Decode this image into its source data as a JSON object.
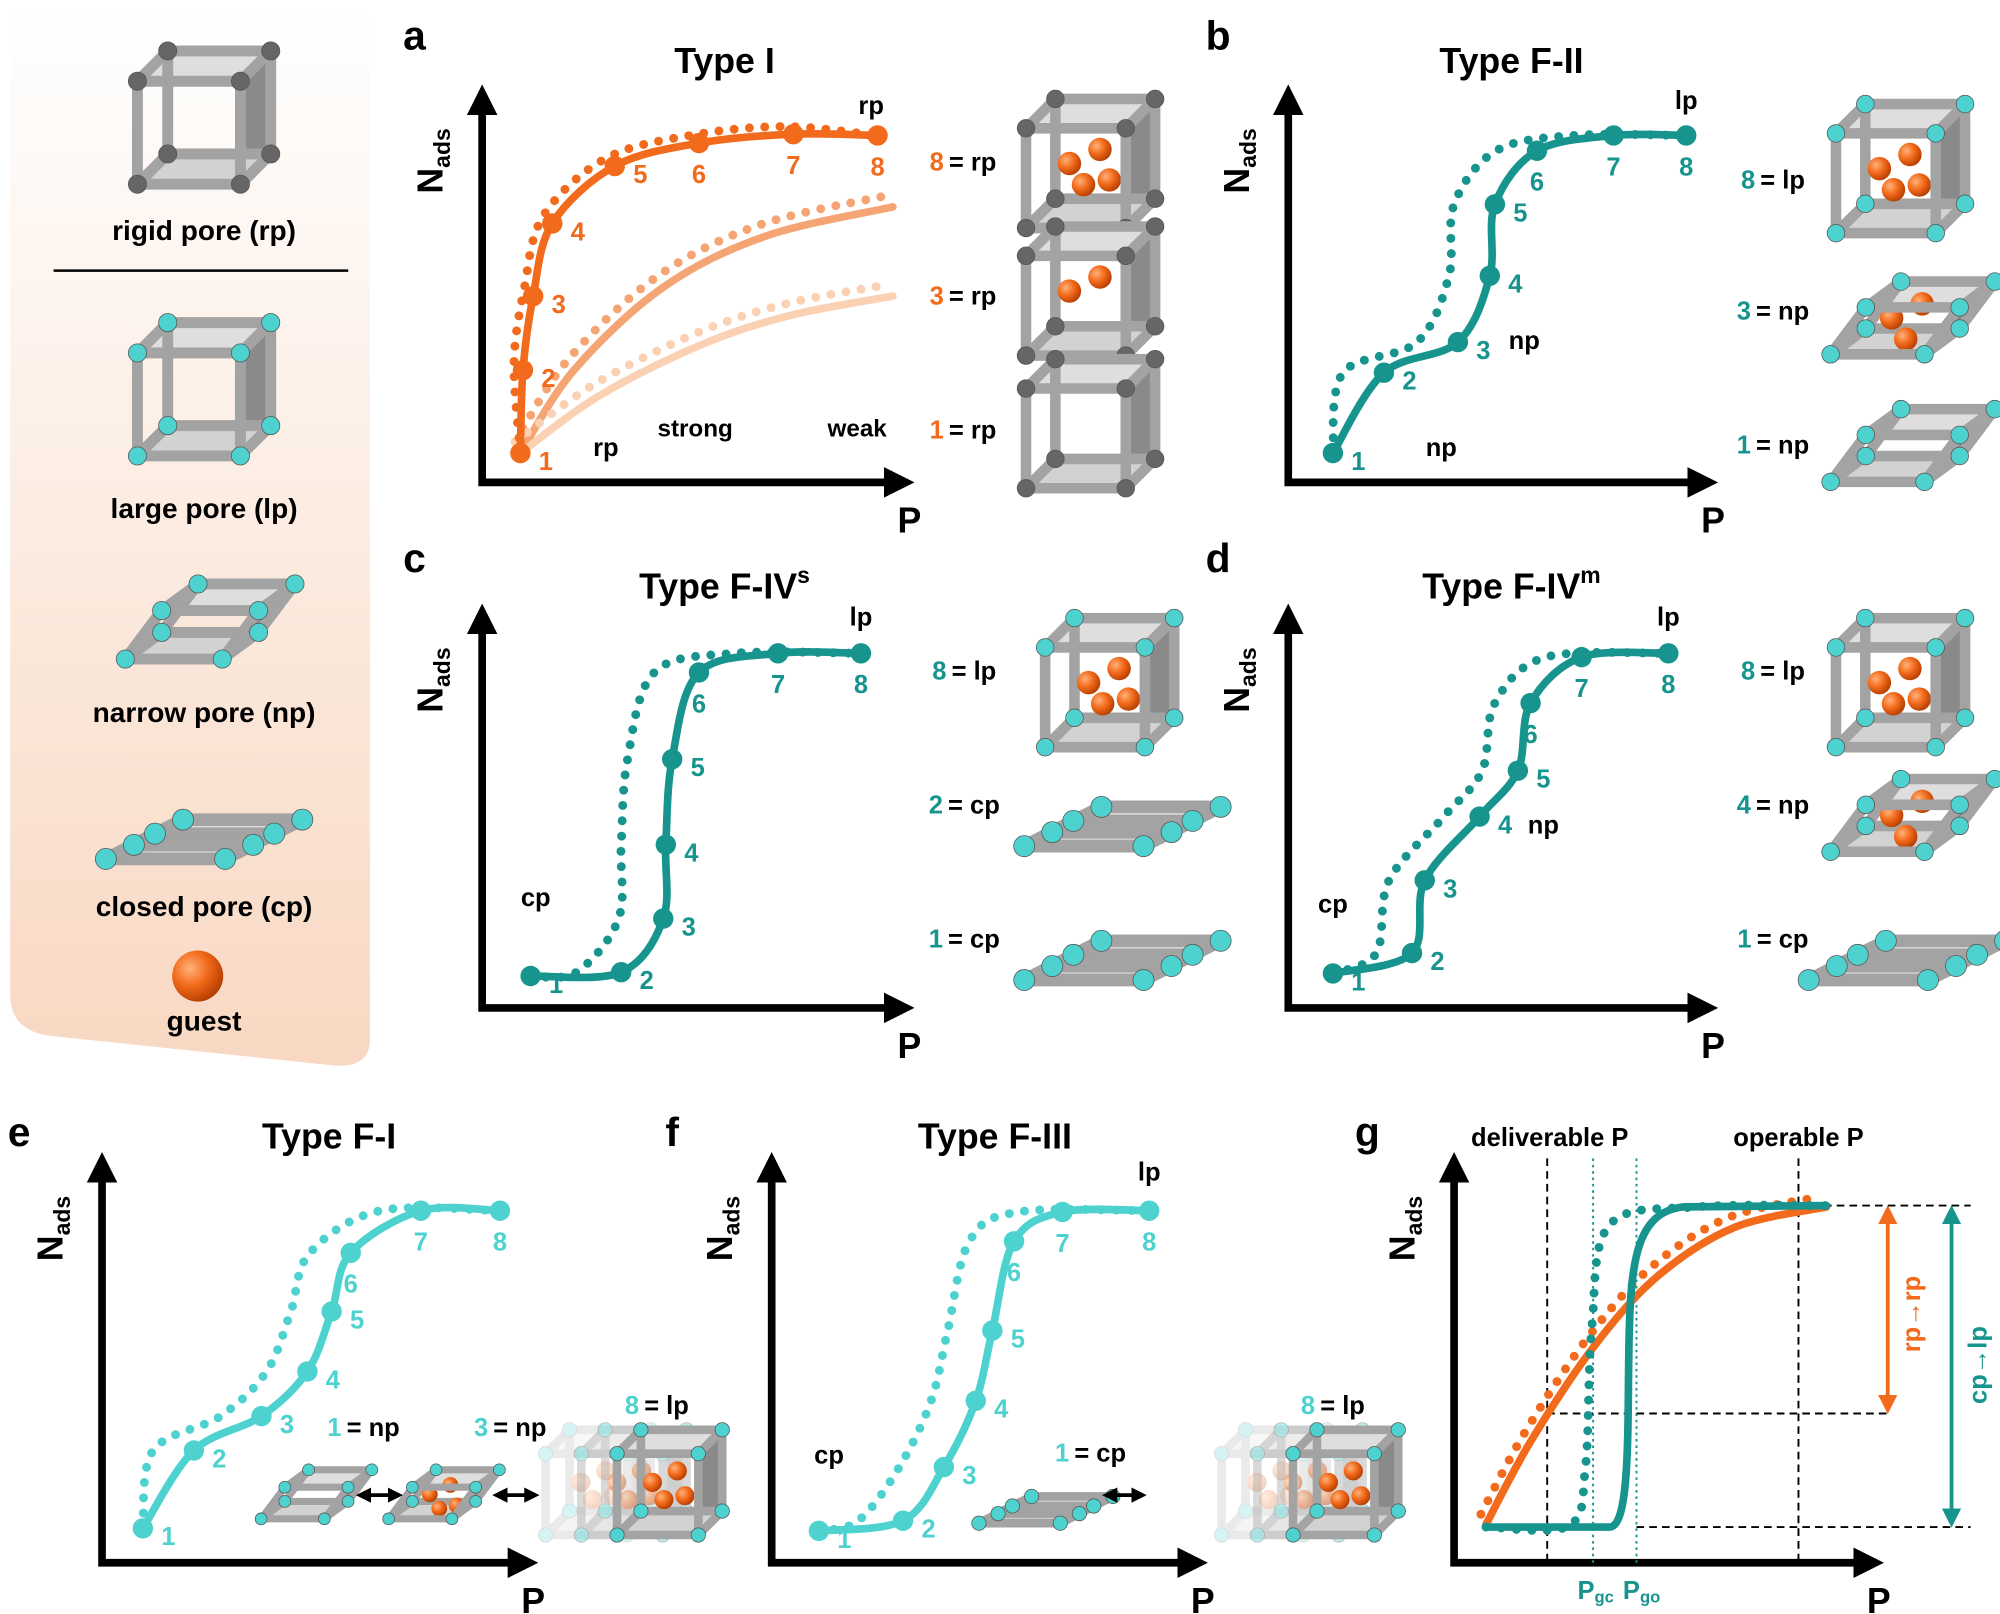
{
  "legend": {
    "items": [
      "rigid pore (rp)",
      "large pore (lp)",
      "narrow pore (np)",
      "closed pore (cp)",
      "guest"
    ]
  },
  "panels": [
    {
      "letter": "a",
      "title": "Type I",
      "y_label": "N",
      "y_label_sub": "ads",
      "x_label": "P",
      "points": [
        "1",
        "2",
        "3",
        "4",
        "5",
        "6",
        "7",
        "8"
      ],
      "annotations": [
        "rp",
        "rp"
      ],
      "key": [
        "strong",
        "weak"
      ],
      "states": [
        {
          "number": "8",
          "text": "= rp"
        },
        {
          "number": "3",
          "text": "= rp"
        },
        {
          "number": "1",
          "text": "= rp"
        }
      ]
    },
    {
      "letter": "b",
      "title": "Type F-II",
      "y_label": "N",
      "y_label_sub": "ads",
      "x_label": "P",
      "points": [
        "1",
        "2",
        "3",
        "4",
        "5",
        "6",
        "7",
        "8"
      ],
      "annotations": [
        "lp",
        "np",
        "np"
      ],
      "states": [
        {
          "number": "8",
          "text": "= lp"
        },
        {
          "number": "3",
          "text": "= np"
        },
        {
          "number": "1",
          "text": "= np"
        }
      ]
    },
    {
      "letter": "c",
      "title": "Type F-IV",
      "title_sup": "s",
      "y_label": "N",
      "y_label_sub": "ads",
      "x_label": "P",
      "points": [
        "1",
        "2",
        "3",
        "4",
        "5",
        "6",
        "7",
        "8"
      ],
      "annotations": [
        "cp",
        "lp"
      ],
      "states": [
        {
          "number": "8",
          "text": "= lp"
        },
        {
          "number": "2",
          "text": "= cp"
        },
        {
          "number": "1",
          "text": "= cp"
        }
      ]
    },
    {
      "letter": "d",
      "title": "Type F-IV",
      "title_sup": "m",
      "y_label": "N",
      "y_label_sub": "ads",
      "x_label": "P",
      "points": [
        "1",
        "2",
        "3",
        "4",
        "5",
        "6",
        "7",
        "8"
      ],
      "annotations": [
        "cp",
        "np",
        "lp"
      ],
      "states": [
        {
          "number": "8",
          "text": "= lp"
        },
        {
          "number": "4",
          "text": "= np"
        },
        {
          "number": "1",
          "text": "= cp"
        }
      ]
    },
    {
      "letter": "e",
      "title": "Type F-I",
      "y_label": "N",
      "y_label_sub": "ads",
      "x_label": "P",
      "points": [
        "1",
        "2",
        "3",
        "4",
        "5",
        "6",
        "7",
        "8"
      ],
      "annotations": [],
      "states": [
        {
          "number": "1",
          "text": "= np"
        },
        {
          "number": "3",
          "text": "= np"
        },
        {
          "number": "8",
          "text": "= lp"
        }
      ]
    },
    {
      "letter": "f",
      "title": "Type F-III",
      "y_label": "N",
      "y_label_sub": "ads",
      "x_label": "P",
      "points": [
        "1",
        "2",
        "3",
        "4",
        "5",
        "6",
        "7",
        "8"
      ],
      "annotations": [
        "cp",
        "lp"
      ],
      "states": [
        {
          "number": "1",
          "text": "= cp"
        },
        {
          "number": "8",
          "text": "= lp"
        }
      ]
    },
    {
      "letter": "g",
      "y_label": "N",
      "y_label_sub": "ads",
      "x_label": "P",
      "annotations": [
        "deliverable P",
        "operable P",
        "rp→rp",
        "cp→lp"
      ],
      "pressures": [
        {
          "symbol": "P",
          "sub": "gc"
        },
        {
          "symbol": "P",
          "sub": "go"
        }
      ]
    }
  ]
}
